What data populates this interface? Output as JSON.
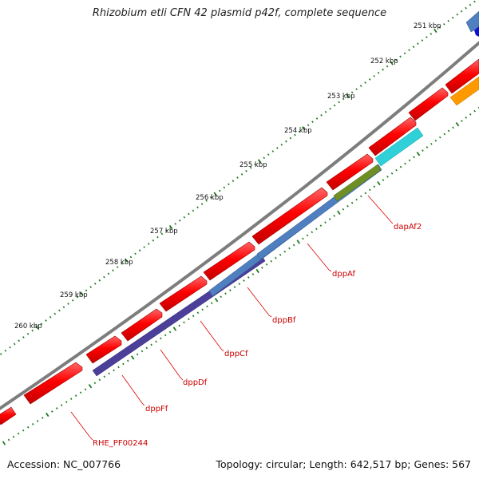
{
  "title": "Rhizobium etli CFN 42 plasmid p42f, complete sequence",
  "footer": {
    "accession": "Accession: NC_007766",
    "summary": "Topology: circular; Length: 642,517 bp; Genes: 567"
  },
  "kbp_labels": [
    "251 kbp",
    "252 kbp",
    "253 kbp",
    "254 kbp",
    "255 kbp",
    "256 kbp",
    "257 kbp",
    "258 kbp",
    "259 kbp",
    "260 kbp"
  ],
  "gene_labels": [
    "dapAf2",
    "dppAf",
    "dppBf",
    "dppCf",
    "dppDf",
    "dppFf",
    "RHE_PF00244"
  ],
  "colors": {
    "backbone": "#808080",
    "forward_gene": "#ff0000",
    "tick": "#1f7a1f",
    "label": "#cc0000",
    "cds_steel": "#4f7fbf",
    "cds_indigo": "#4b3f99",
    "cds_olive": "#6f8f25",
    "cds_cyan": "#2fd0d8",
    "cds_orange": "#ff9900",
    "cds_blue": "#1010d0"
  }
}
